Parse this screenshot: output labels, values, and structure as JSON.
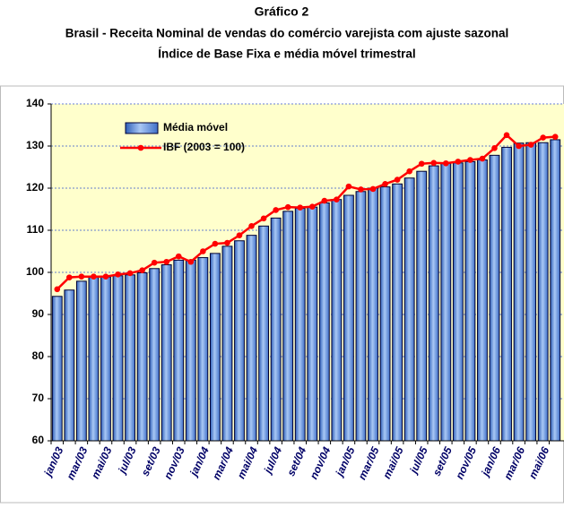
{
  "chart_data": {
    "type": "combo",
    "title": "Gráfico 2",
    "subtitle": [
      "Brasil - Receita Nominal de vendas do comércio varejista com ajuste sazonal",
      "Índice de Base Fixa  e média móvel trimestral"
    ],
    "categories": [
      "jan/03",
      null,
      "mar/03",
      null,
      "mai/03",
      null,
      "jul/03",
      null,
      "set/03",
      null,
      "nov/03",
      null,
      "jan/04",
      null,
      "mar/04",
      null,
      "mai/04",
      null,
      "jul/04",
      null,
      "set/04",
      null,
      "nov/04",
      null,
      "jan/05",
      null,
      "mar/05",
      null,
      "mai/05",
      null,
      "jul/05",
      null,
      "set/05",
      null,
      "nov/05",
      null,
      "jan/06",
      null,
      "mar/06",
      null,
      "mai/06",
      null
    ],
    "series": [
      {
        "name": "Média móvel",
        "type": "bar",
        "color": "#6f9fe0",
        "values": [
          94.3,
          95.8,
          97.9,
          98.8,
          98.9,
          99.2,
          99.4,
          99.9,
          100.9,
          101.8,
          102.9,
          102.9,
          103.5,
          104.5,
          106.2,
          107.5,
          108.8,
          111,
          112.9,
          114.5,
          115.2,
          115.5,
          116.5,
          117.3,
          118.3,
          119.2,
          120,
          120.3,
          121,
          122.4,
          124,
          125.3,
          125.9,
          126,
          126.3,
          126.7,
          127.8,
          129.7,
          130.7,
          130.8,
          130.8,
          131.5
        ]
      },
      {
        "name": "IBF (2003 = 100)",
        "type": "line",
        "color": "#ff0000",
        "values": [
          96,
          98.8,
          99,
          99,
          99,
          99.5,
          99.8,
          100.5,
          102.3,
          102.5,
          103.8,
          102.5,
          105,
          106.8,
          107,
          108.8,
          111,
          112.8,
          114.8,
          115.5,
          115.4,
          115.6,
          117,
          117.3,
          120.4,
          119.7,
          119.8,
          121,
          122,
          124,
          125.8,
          126,
          125.9,
          126.3,
          126.7,
          127,
          129.5,
          132.6,
          130,
          130.3,
          132,
          132.2
        ]
      }
    ],
    "ylim": [
      60,
      140
    ],
    "yticks": [
      60,
      70,
      80,
      90,
      100,
      110,
      120,
      130,
      140
    ],
    "grid": true
  }
}
